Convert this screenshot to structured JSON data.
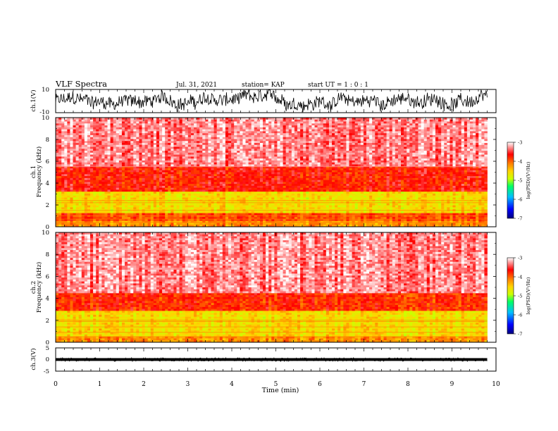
{
  "header": {
    "title": "VLF Spectra",
    "date": "Jul. 31, 2021",
    "station": "station= KAP",
    "start": "start  UT =   1 : 0  : 1"
  },
  "colors": {
    "spectrogram_scale": [
      "#00007f",
      "#0000ff",
      "#00bfff",
      "#00ff66",
      "#ccff00",
      "#ffd400",
      "#ff7f00",
      "#ff0000",
      "#ffffff"
    ]
  },
  "chart_data": [
    {
      "type": "line",
      "name": "ch1-waveform",
      "ylabel": "ch.1(V)",
      "ylim": [
        -10,
        10
      ],
      "yticks": [
        "10",
        "-10"
      ],
      "xlim": [
        0,
        10
      ],
      "description_level": "dense noisy waveform spanning roughly -8 to 8 V"
    },
    {
      "type": "heatmap",
      "name": "ch1-spectrogram",
      "ylabel": "ch.1 Frequency (kHz)",
      "ylim": [
        0,
        10
      ],
      "yticks": [
        "0",
        "2",
        "4",
        "6",
        "8",
        "10"
      ],
      "xlim": [
        0,
        10
      ],
      "colorbar": {
        "label": "log(PSD)(V²/Hz)",
        "range": [
          -7,
          -3
        ],
        "ticks": [
          "-3",
          "-4",
          "-5",
          "-6",
          "-7"
        ]
      },
      "bands_khz": [
        {
          "from": 0,
          "to": 0.6,
          "level": -4.2
        },
        {
          "from": 0.6,
          "to": 1.2,
          "level": -3.9
        },
        {
          "from": 1.2,
          "to": 3.2,
          "level": -4.6
        },
        {
          "from": 3.2,
          "to": 5.5,
          "level": -3.7
        },
        {
          "from": 5.5,
          "to": 10,
          "level": -3.3
        }
      ],
      "lines_khz": [
        0.4,
        0.7,
        1.0,
        1.5,
        2.2,
        2.4,
        5.5
      ]
    },
    {
      "type": "heatmap",
      "name": "ch2-spectrogram",
      "ylabel": "ch.2 Frequency (kHz)",
      "ylim": [
        0,
        10
      ],
      "yticks": [
        "0",
        "2",
        "4",
        "6",
        "8",
        "10"
      ],
      "xlim": [
        0,
        10
      ],
      "colorbar": {
        "label": "log(PSD)(V²/Hz)",
        "range": [
          -7,
          -3
        ],
        "ticks": [
          "-3",
          "-4",
          "-5",
          "-6",
          "-7"
        ]
      },
      "bands_khz": [
        {
          "from": 0,
          "to": 0.6,
          "level": -4.2
        },
        {
          "from": 0.6,
          "to": 2.8,
          "level": -4.6
        },
        {
          "from": 2.8,
          "to": 4.5,
          "level": -3.8
        },
        {
          "from": 4.5,
          "to": 10,
          "level": -3.3
        }
      ],
      "lines_khz": [
        0.5,
        0.9,
        1.4,
        1.9,
        2.0
      ]
    },
    {
      "type": "line",
      "name": "ch3-waveform",
      "ylabel": "ch.3(V)",
      "ylim": [
        -5,
        5
      ],
      "yticks": [
        "5",
        "0",
        "-5"
      ],
      "xlim": [
        0,
        10
      ],
      "description_level": "thin band near 0 V"
    }
  ],
  "xaxis": {
    "label": "Time  (min)",
    "ticks": [
      "0",
      "1",
      "2",
      "3",
      "4",
      "5",
      "6",
      "7",
      "8",
      "9",
      "10"
    ],
    "data_end_min": 9.8
  }
}
